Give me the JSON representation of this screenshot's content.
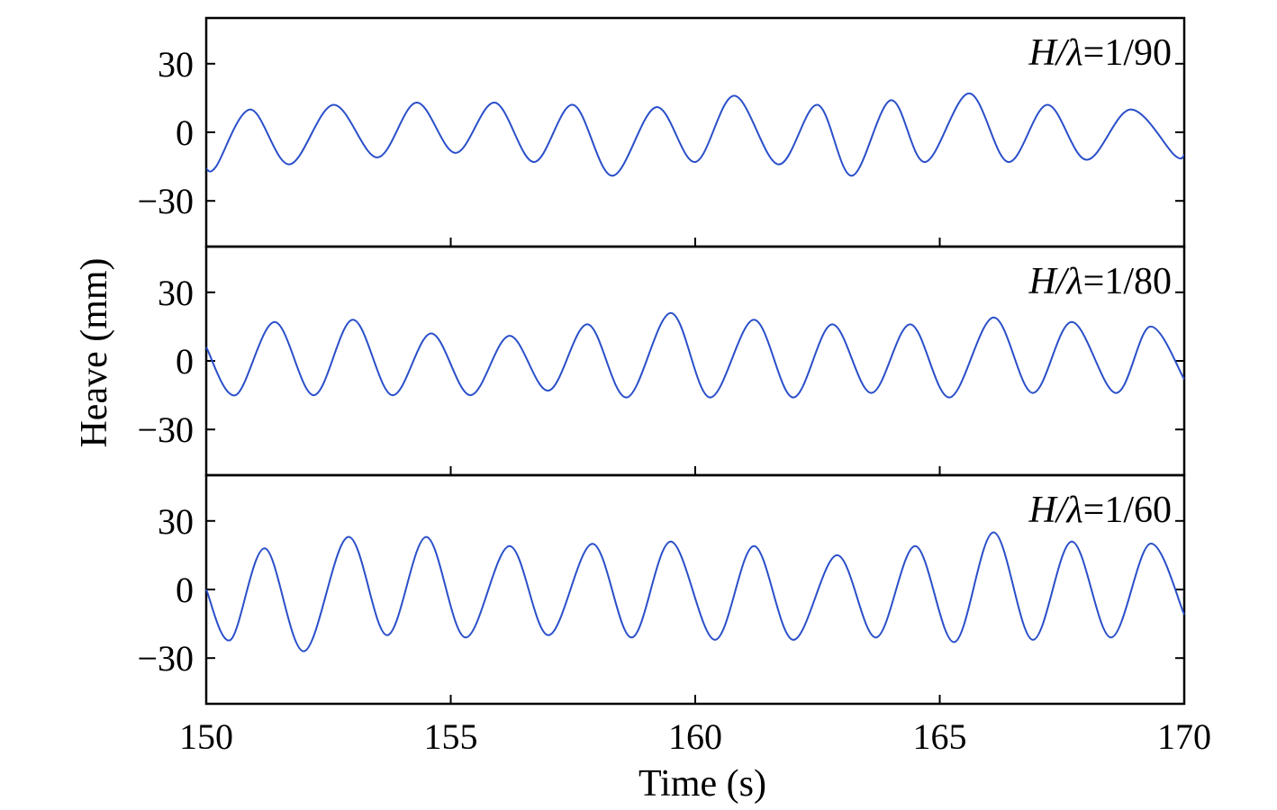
{
  "chart_data": {
    "type": "line",
    "xlabel": "Time (s)",
    "ylabel": "Heave (mm)",
    "xlim": [
      150,
      170
    ],
    "xticks": [
      150,
      155,
      160,
      165,
      170
    ],
    "xtick_labels": [
      "150",
      "155",
      "160",
      "165",
      "170"
    ],
    "ylim": [
      -50,
      50
    ],
    "yticks": [
      30,
      0,
      -30
    ],
    "ytick_labels": [
      "30",
      "0",
      "−30"
    ],
    "grid": false,
    "legend": "none",
    "line_color": "#2a4fc9",
    "panels": [
      {
        "label": {
          "var_italic": "H/λ",
          "rest": "=1/90"
        },
        "series": {
          "x": [
            150.0,
            150.2,
            150.9,
            151.7,
            152.6,
            153.5,
            154.3,
            155.1,
            155.9,
            156.7,
            157.5,
            158.3,
            159.2,
            160.0,
            160.8,
            161.7,
            162.5,
            163.2,
            164.0,
            164.7,
            165.6,
            166.4,
            167.2,
            168.0,
            168.9,
            169.8,
            170.0
          ],
          "y": [
            -16,
            -15,
            10,
            -14,
            12,
            -11,
            13,
            -9,
            13,
            -13,
            12,
            -19,
            11,
            -13,
            16,
            -14,
            12,
            -19,
            14,
            -13,
            17,
            -13,
            12,
            -12,
            10,
            -10,
            -10
          ]
        }
      },
      {
        "label": {
          "var_italic": "H/λ",
          "rest": "=1/80"
        },
        "series": {
          "x": [
            150.0,
            150.6,
            151.4,
            152.2,
            153.0,
            153.8,
            154.6,
            155.4,
            156.2,
            157.0,
            157.8,
            158.6,
            159.5,
            160.3,
            161.2,
            162.0,
            162.8,
            163.6,
            164.4,
            165.2,
            166.1,
            166.9,
            167.7,
            168.6,
            169.3,
            170.0
          ],
          "y": [
            6,
            -15,
            17,
            -15,
            18,
            -15,
            12,
            -15,
            11,
            -13,
            16,
            -16,
            21,
            -16,
            18,
            -16,
            16,
            -14,
            16,
            -16,
            19,
            -14,
            17,
            -14,
            15,
            -8
          ]
        }
      },
      {
        "label": {
          "var_italic": "H/λ",
          "rest": "=1/60"
        },
        "series": {
          "x": [
            150.0,
            150.5,
            151.2,
            152.0,
            152.9,
            153.7,
            154.5,
            155.3,
            156.2,
            157.0,
            157.9,
            158.7,
            159.5,
            160.4,
            161.2,
            162.0,
            162.9,
            163.7,
            164.5,
            165.3,
            166.1,
            166.9,
            167.7,
            168.5,
            169.3,
            170.0
          ],
          "y": [
            0,
            -22,
            18,
            -27,
            23,
            -20,
            23,
            -21,
            19,
            -20,
            20,
            -21,
            21,
            -22,
            19,
            -22,
            15,
            -21,
            19,
            -23,
            25,
            -22,
            21,
            -21,
            20,
            -11
          ]
        }
      }
    ]
  }
}
